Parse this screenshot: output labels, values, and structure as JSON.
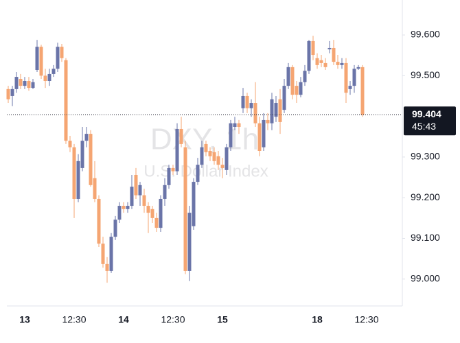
{
  "chart_data": {
    "type": "candlestick",
    "title": "DXY, 1h",
    "subtitle": "U.S. Dollar Index",
    "up_color": "#6a74a8",
    "down_color": "#f5a572",
    "ylim": [
      98.944,
      99.686
    ],
    "yticks": [
      {
        "value": 99.0,
        "label": "99.000"
      },
      {
        "value": 99.1,
        "label": "99.100"
      },
      {
        "value": 99.2,
        "label": "99.200"
      },
      {
        "value": 99.3,
        "label": "99.300"
      },
      {
        "value": 99.5,
        "label": "99.500"
      },
      {
        "value": 99.6,
        "label": "99.600"
      }
    ],
    "xticks": [
      {
        "value": 4,
        "label": "13",
        "bold": true
      },
      {
        "value": 16,
        "label": "12:30"
      },
      {
        "value": 28,
        "label": "14",
        "bold": true
      },
      {
        "value": 40,
        "label": "12:30"
      },
      {
        "value": 52,
        "label": "15",
        "bold": true
      },
      {
        "value": 75,
        "label": "18",
        "bold": true
      },
      {
        "value": 87,
        "label": "12:30"
      }
    ],
    "last_price": {
      "value": 99.404,
      "label": "99.404"
    },
    "countdown": "45:43",
    "open": [
      99.467,
      99.45,
      99.467,
      99.492,
      99.475,
      99.487,
      99.47,
      99.514,
      99.571,
      99.5,
      99.487,
      99.504,
      99.517,
      99.571,
      99.538,
      99.34,
      99.324,
      99.197,
      99.273,
      99.34,
      99.357,
      99.248,
      99.197,
      99.087,
      99.037,
      99.02,
      99.104,
      99.146,
      99.18,
      99.172,
      99.18,
      99.256,
      99.206,
      99.206,
      99.18,
      99.172,
      99.15,
      99.126,
      99.197,
      99.231,
      99.273,
      99.265,
      99.369,
      99.324,
      99.02,
      99.13,
      99.239,
      99.281,
      99.332,
      99.315,
      99.312,
      99.302,
      99.281,
      99.268,
      99.324,
      99.374,
      99.383,
      99.42,
      99.45,
      99.42,
      99.433,
      99.383,
      99.324,
      99.391,
      99.383,
      99.399,
      99.442,
      99.416,
      99.475,
      99.521,
      99.475,
      99.453,
      99.484,
      99.512,
      99.585,
      99.543,
      99.538,
      99.531,
      99.565,
      99.568,
      99.534,
      99.526,
      99.531,
      99.467,
      99.475,
      99.517,
      99.521
    ],
    "high": [
      99.475,
      99.475,
      99.509,
      99.504,
      99.497,
      99.497,
      99.492,
      99.588,
      99.576,
      99.517,
      99.517,
      99.526,
      99.581,
      99.578,
      99.543,
      99.352,
      99.332,
      99.307,
      99.374,
      99.374,
      99.366,
      99.29,
      99.206,
      99.104,
      99.054,
      99.113,
      99.155,
      99.189,
      99.189,
      99.189,
      99.256,
      99.273,
      99.239,
      99.222,
      99.189,
      99.18,
      99.163,
      99.206,
      99.248,
      99.281,
      99.281,
      99.383,
      99.399,
      99.34,
      99.18,
      99.248,
      99.298,
      99.34,
      99.34,
      99.324,
      99.324,
      99.315,
      99.298,
      99.332,
      99.391,
      99.399,
      99.391,
      99.47,
      99.458,
      99.442,
      99.484,
      99.399,
      99.408,
      99.408,
      99.458,
      99.45,
      99.467,
      99.492,
      99.531,
      99.526,
      99.487,
      99.497,
      99.526,
      99.588,
      99.598,
      99.555,
      99.551,
      99.543,
      99.585,
      99.588,
      99.551,
      99.543,
      99.543,
      99.487,
      99.526,
      99.526,
      99.526
    ],
    "low": [
      99.433,
      99.425,
      99.458,
      99.467,
      99.467,
      99.463,
      99.467,
      99.509,
      99.492,
      99.47,
      99.475,
      99.497,
      99.509,
      99.534,
      99.332,
      99.312,
      99.15,
      99.189,
      99.265,
      99.324,
      99.227,
      99.189,
      99.079,
      99.028,
      98.991,
      99.015,
      99.096,
      99.138,
      99.163,
      99.163,
      99.172,
      99.197,
      99.18,
      99.163,
      99.113,
      99.138,
      99.116,
      99.116,
      99.18,
      99.222,
      99.256,
      99.256,
      99.324,
      99.012,
      98.995,
      99.121,
      99.231,
      99.273,
      99.302,
      99.29,
      99.281,
      99.268,
      99.248,
      99.256,
      99.315,
      99.366,
      99.357,
      99.408,
      99.408,
      99.399,
      99.374,
      99.302,
      99.315,
      99.366,
      99.366,
      99.386,
      99.357,
      99.408,
      99.467,
      99.442,
      99.433,
      99.447,
      99.475,
      99.504,
      99.538,
      99.517,
      99.521,
      99.514,
      99.555,
      99.526,
      99.517,
      99.517,
      99.433,
      99.453,
      99.458,
      99.514,
      99.399
    ],
    "close": [
      99.442,
      99.467,
      99.497,
      99.475,
      99.487,
      99.47,
      99.484,
      99.571,
      99.5,
      99.487,
      99.504,
      99.517,
      99.571,
      99.543,
      99.34,
      99.324,
      99.197,
      99.29,
      99.34,
      99.357,
      99.231,
      99.197,
      99.087,
      99.037,
      99.02,
      99.104,
      99.146,
      99.18,
      99.172,
      99.18,
      99.227,
      99.206,
      99.231,
      99.18,
      99.163,
      99.15,
      99.126,
      99.197,
      99.231,
      99.273,
      99.265,
      99.369,
      99.332,
      99.02,
      99.163,
      99.239,
      99.281,
      99.324,
      99.312,
      99.302,
      99.29,
      99.281,
      99.273,
      99.324,
      99.383,
      99.383,
      99.374,
      99.45,
      99.42,
      99.433,
      99.383,
      99.315,
      99.391,
      99.383,
      99.442,
      99.433,
      99.386,
      99.475,
      99.521,
      99.453,
      99.453,
      99.484,
      99.512,
      99.585,
      99.551,
      99.526,
      99.531,
      99.521,
      99.568,
      99.534,
      99.526,
      99.531,
      99.458,
      99.475,
      99.517,
      99.521,
      99.404
    ]
  }
}
